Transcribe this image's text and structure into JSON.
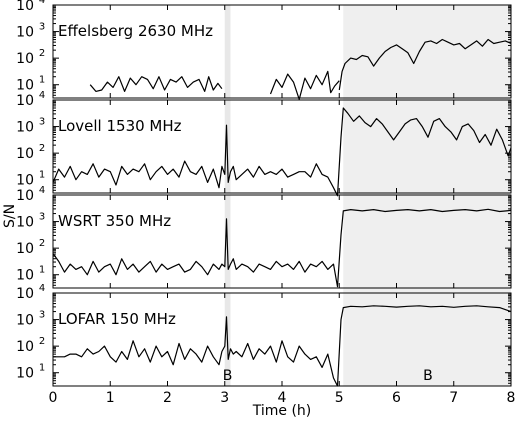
{
  "chart_data": {
    "type": "line",
    "ylabel": "S/N",
    "xlabel": "Time (h)",
    "xlim": [
      0,
      8
    ],
    "ylim_log10": [
      0.5,
      4
    ],
    "y_scale": "log",
    "x_ticks": [
      "0",
      "1",
      "2",
      "3",
      "4",
      "5",
      "6",
      "7",
      "8"
    ],
    "y_tick_labels": [
      {
        "base": "10",
        "exp": "1",
        "log": 1
      },
      {
        "base": "10",
        "exp": "2",
        "log": 2
      },
      {
        "base": "10",
        "exp": "3",
        "log": 3
      },
      {
        "base": "10",
        "exp": "4",
        "log": 4
      }
    ],
    "shaded_regions": [
      {
        "name": "B",
        "x_start": 3.0,
        "x_end": 3.1,
        "color": "#e8e8e8",
        "label": "B",
        "label_x": 3.05
      },
      {
        "name": "B",
        "x_start": 5.07,
        "x_end": 8.0,
        "color": "#efefef",
        "label": "B",
        "label_x": 6.55
      }
    ],
    "panels": [
      {
        "title": "Effelsberg 2630 MHz",
        "shade_narrow": false,
        "segments": [
          {
            "x": [
              0.65,
              0.75,
              0.85,
              0.95,
              1.05,
              1.15,
              1.25,
              1.35,
              1.45,
              1.55,
              1.65,
              1.75,
              1.85,
              1.95,
              2.05,
              2.15,
              2.25,
              2.35,
              2.45,
              2.55,
              2.65,
              2.72,
              2.8,
              2.88,
              2.95
            ],
            "log_y": [
              1.0,
              0.75,
              0.8,
              1.1,
              0.9,
              1.3,
              0.75,
              1.25,
              1.0,
              1.3,
              1.2,
              0.85,
              1.3,
              0.8,
              1.2,
              1.1,
              1.3,
              0.9,
              1.1,
              1.2,
              0.75,
              1.3,
              0.8,
              1.05,
              0.85
            ]
          },
          {
            "x": [
              3.8,
              3.9,
              4.0,
              4.1,
              4.2,
              4.3,
              4.4,
              4.5,
              4.6,
              4.7,
              4.8,
              4.85,
              4.92,
              5.0
            ],
            "log_y": [
              0.65,
              1.2,
              0.9,
              1.4,
              1.1,
              0.45,
              1.25,
              0.85,
              1.35,
              1.0,
              1.5,
              0.7,
              0.95,
              1.15
            ]
          },
          {
            "x": [
              5.0,
              5.05,
              5.1,
              5.2,
              5.3,
              5.4,
              5.5,
              5.6,
              5.7,
              5.8,
              5.9,
              6.0,
              6.1,
              6.2,
              6.3,
              6.4,
              6.5,
              6.6,
              6.7,
              6.8,
              6.9,
              7.0,
              7.1,
              7.2,
              7.3,
              7.4,
              7.5,
              7.6,
              7.7,
              7.8,
              7.9,
              8.0
            ],
            "log_y": [
              0.8,
              1.5,
              1.8,
              2.0,
              1.95,
              2.1,
              2.05,
              1.7,
              2.0,
              2.25,
              2.4,
              2.5,
              2.35,
              2.2,
              1.8,
              2.25,
              2.6,
              2.65,
              2.55,
              2.7,
              2.6,
              2.5,
              2.55,
              2.35,
              2.5,
              2.65,
              2.45,
              2.7,
              2.55,
              2.6,
              2.65,
              2.55
            ]
          }
        ]
      },
      {
        "title": "Lovell 1530 MHz",
        "shade_narrow": true,
        "segments": [
          {
            "x": [
              0.0,
              0.1,
              0.2,
              0.3,
              0.4,
              0.5,
              0.6,
              0.7,
              0.8,
              0.9,
              1.0,
              1.1,
              1.2,
              1.3,
              1.4,
              1.5,
              1.6,
              1.7,
              1.8,
              1.9,
              2.0,
              2.1,
              2.2,
              2.3,
              2.4,
              2.5,
              2.6,
              2.7,
              2.8,
              2.9,
              2.95,
              3.0,
              3.03,
              3.06,
              3.1,
              3.15,
              3.2,
              3.3,
              3.4,
              3.5,
              3.6,
              3.7,
              3.8,
              3.9,
              4.0,
              4.1,
              4.2,
              4.3,
              4.4,
              4.5,
              4.6,
              4.7,
              4.8,
              4.9,
              4.97,
              5.03,
              5.07,
              5.15,
              5.25,
              5.35,
              5.45,
              5.55,
              5.65,
              5.75,
              5.85,
              5.95,
              6.05,
              6.15,
              6.25,
              6.35,
              6.45,
              6.55,
              6.65,
              6.75,
              6.85,
              6.95,
              7.05,
              7.15,
              7.25,
              7.35,
              7.45,
              7.55,
              7.65,
              7.75,
              7.85,
              7.95,
              8.0
            ],
            "log_y": [
              0.9,
              1.4,
              1.1,
              1.5,
              1.0,
              1.3,
              1.2,
              1.6,
              1.1,
              1.4,
              1.3,
              0.8,
              1.5,
              1.2,
              1.4,
              1.3,
              1.6,
              1.0,
              1.3,
              1.5,
              1.2,
              1.4,
              1.1,
              1.7,
              1.3,
              1.2,
              1.5,
              0.9,
              1.4,
              0.7,
              1.5,
              1.2,
              3.05,
              0.9,
              1.3,
              1.5,
              1.0,
              1.2,
              1.4,
              1.1,
              1.5,
              1.2,
              1.3,
              1.2,
              1.4,
              1.1,
              1.2,
              1.3,
              1.3,
              1.1,
              1.6,
              1.2,
              1.1,
              0.7,
              0.4,
              2.6,
              3.7,
              3.5,
              3.2,
              3.4,
              3.15,
              3.0,
              3.3,
              3.1,
              2.8,
              2.5,
              2.8,
              3.1,
              3.25,
              3.3,
              3.0,
              2.6,
              3.2,
              3.3,
              3.0,
              2.8,
              2.5,
              3.0,
              3.1,
              2.85,
              2.4,
              2.7,
              2.3,
              2.9,
              2.5,
              1.9,
              2.2
            ]
          }
        ]
      },
      {
        "title": "WSRT 350 MHz",
        "shade_narrow": true,
        "segments": [
          {
            "x": [
              0.0,
              0.1,
              0.2,
              0.3,
              0.4,
              0.5,
              0.6,
              0.7,
              0.8,
              0.9,
              1.0,
              1.1,
              1.2,
              1.3,
              1.4,
              1.5,
              1.6,
              1.7,
              1.8,
              1.9,
              2.0,
              2.1,
              2.2,
              2.3,
              2.4,
              2.5,
              2.6,
              2.7,
              2.8,
              2.9,
              2.95,
              3.0,
              3.03,
              3.06,
              3.1,
              3.15,
              3.2,
              3.3,
              3.4,
              3.5,
              3.6,
              3.7,
              3.8,
              3.9,
              4.0,
              4.1,
              4.2,
              4.3,
              4.4,
              4.5,
              4.6,
              4.7,
              4.8,
              4.9,
              4.97,
              5.03,
              5.07,
              5.2,
              5.4,
              5.6,
              5.8,
              6.0,
              6.2,
              6.4,
              6.6,
              6.8,
              7.0,
              7.2,
              7.4,
              7.6,
              7.8,
              8.0
            ],
            "log_y": [
              1.8,
              1.5,
              1.1,
              1.4,
              1.2,
              1.3,
              1.0,
              1.5,
              1.1,
              1.3,
              1.4,
              1.0,
              1.6,
              1.2,
              1.4,
              1.1,
              1.3,
              1.5,
              1.1,
              1.4,
              1.2,
              1.3,
              1.4,
              1.1,
              1.2,
              1.5,
              1.3,
              1.0,
              1.4,
              1.2,
              1.4,
              1.3,
              3.1,
              1.2,
              1.4,
              1.6,
              1.2,
              1.4,
              1.3,
              1.1,
              1.4,
              1.3,
              1.2,
              1.5,
              1.3,
              1.4,
              1.2,
              1.5,
              1.1,
              1.4,
              1.3,
              1.5,
              1.2,
              1.4,
              0.55,
              2.5,
              3.4,
              3.45,
              3.4,
              3.45,
              3.38,
              3.42,
              3.45,
              3.4,
              3.45,
              3.38,
              3.42,
              3.45,
              3.4,
              3.46,
              3.38,
              3.42
            ]
          }
        ]
      },
      {
        "title": "LOFAR 150 MHz",
        "shade_narrow": true,
        "segments": [
          {
            "x": [
              0.0,
              0.1,
              0.2,
              0.3,
              0.4,
              0.5,
              0.6,
              0.7,
              0.8,
              0.9,
              1.0,
              1.1,
              1.2,
              1.3,
              1.4,
              1.5,
              1.6,
              1.7,
              1.8,
              1.9,
              2.0,
              2.1,
              2.2,
              2.3,
              2.4,
              2.5,
              2.6,
              2.7,
              2.8,
              2.9,
              2.95,
              3.0,
              3.03,
              3.06,
              3.1,
              3.15,
              3.2,
              3.3,
              3.4,
              3.5,
              3.6,
              3.7,
              3.8,
              3.9,
              4.0,
              4.1,
              4.2,
              4.3,
              4.4,
              4.5,
              4.6,
              4.7,
              4.8,
              4.9,
              4.97,
              5.03,
              5.07,
              5.2,
              5.4,
              5.6,
              5.8,
              6.0,
              6.2,
              6.4,
              6.6,
              6.8,
              7.0,
              7.2,
              7.4,
              7.6,
              7.8,
              8.0
            ],
            "log_y": [
              1.6,
              1.6,
              1.6,
              1.7,
              1.7,
              1.6,
              1.9,
              1.7,
              1.8,
              2.0,
              1.6,
              1.4,
              1.8,
              1.5,
              2.2,
              1.6,
              1.9,
              1.4,
              2.0,
              1.6,
              1.8,
              1.3,
              2.1,
              1.5,
              1.9,
              1.7,
              1.4,
              2.0,
              1.6,
              1.3,
              1.8,
              2.0,
              3.1,
              1.5,
              1.9,
              1.7,
              1.8,
              1.6,
              2.1,
              1.5,
              1.9,
              1.7,
              2.0,
              1.4,
              2.2,
              1.6,
              1.4,
              2.0,
              1.7,
              1.5,
              1.6,
              1.2,
              1.7,
              0.8,
              0.5,
              3.0,
              3.45,
              3.5,
              3.48,
              3.52,
              3.5,
              3.47,
              3.5,
              3.52,
              3.48,
              3.5,
              3.46,
              3.5,
              3.52,
              3.48,
              3.45,
              3.3
            ]
          }
        ]
      }
    ]
  }
}
